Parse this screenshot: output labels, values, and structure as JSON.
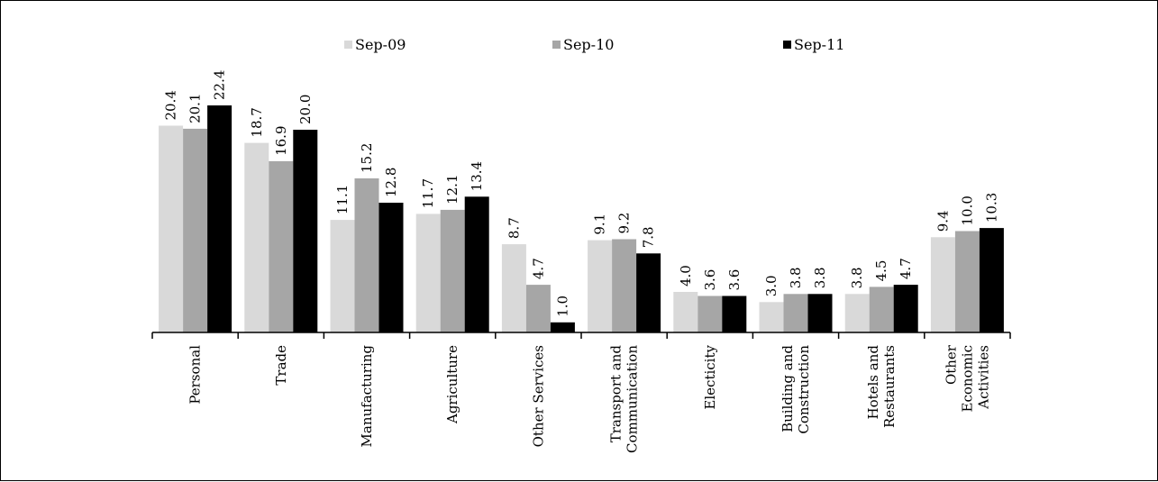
{
  "chart_data": {
    "type": "bar",
    "title": "",
    "xlabel": "",
    "ylabel": "",
    "ylim": [
      0,
      24
    ],
    "grid": false,
    "legend_position": "top",
    "categories": [
      [
        "Personal"
      ],
      [
        "Trade"
      ],
      [
        "Manufacturing"
      ],
      [
        "Agriculture"
      ],
      [
        "Other Services"
      ],
      [
        "Transport and",
        "Communication"
      ],
      [
        "Electicity"
      ],
      [
        "Building and",
        "Construction"
      ],
      [
        "Hotels and",
        "Restaurants"
      ],
      [
        "Other",
        "Economic",
        "Activities"
      ]
    ],
    "series": [
      {
        "name": "Sep-09",
        "color": "#d9d9d9",
        "values": [
          20.4,
          18.7,
          11.1,
          11.7,
          8.7,
          9.1,
          4.0,
          3.0,
          3.8,
          9.4
        ]
      },
      {
        "name": "Sep-10",
        "color": "#a6a6a6",
        "values": [
          20.1,
          16.9,
          15.2,
          12.1,
          4.7,
          9.2,
          3.6,
          3.8,
          4.5,
          10.0
        ]
      },
      {
        "name": "Sep-11",
        "color": "#000000",
        "values": [
          22.4,
          20.0,
          12.8,
          13.4,
          1.0,
          7.8,
          3.6,
          3.8,
          4.7,
          10.3
        ]
      }
    ]
  }
}
